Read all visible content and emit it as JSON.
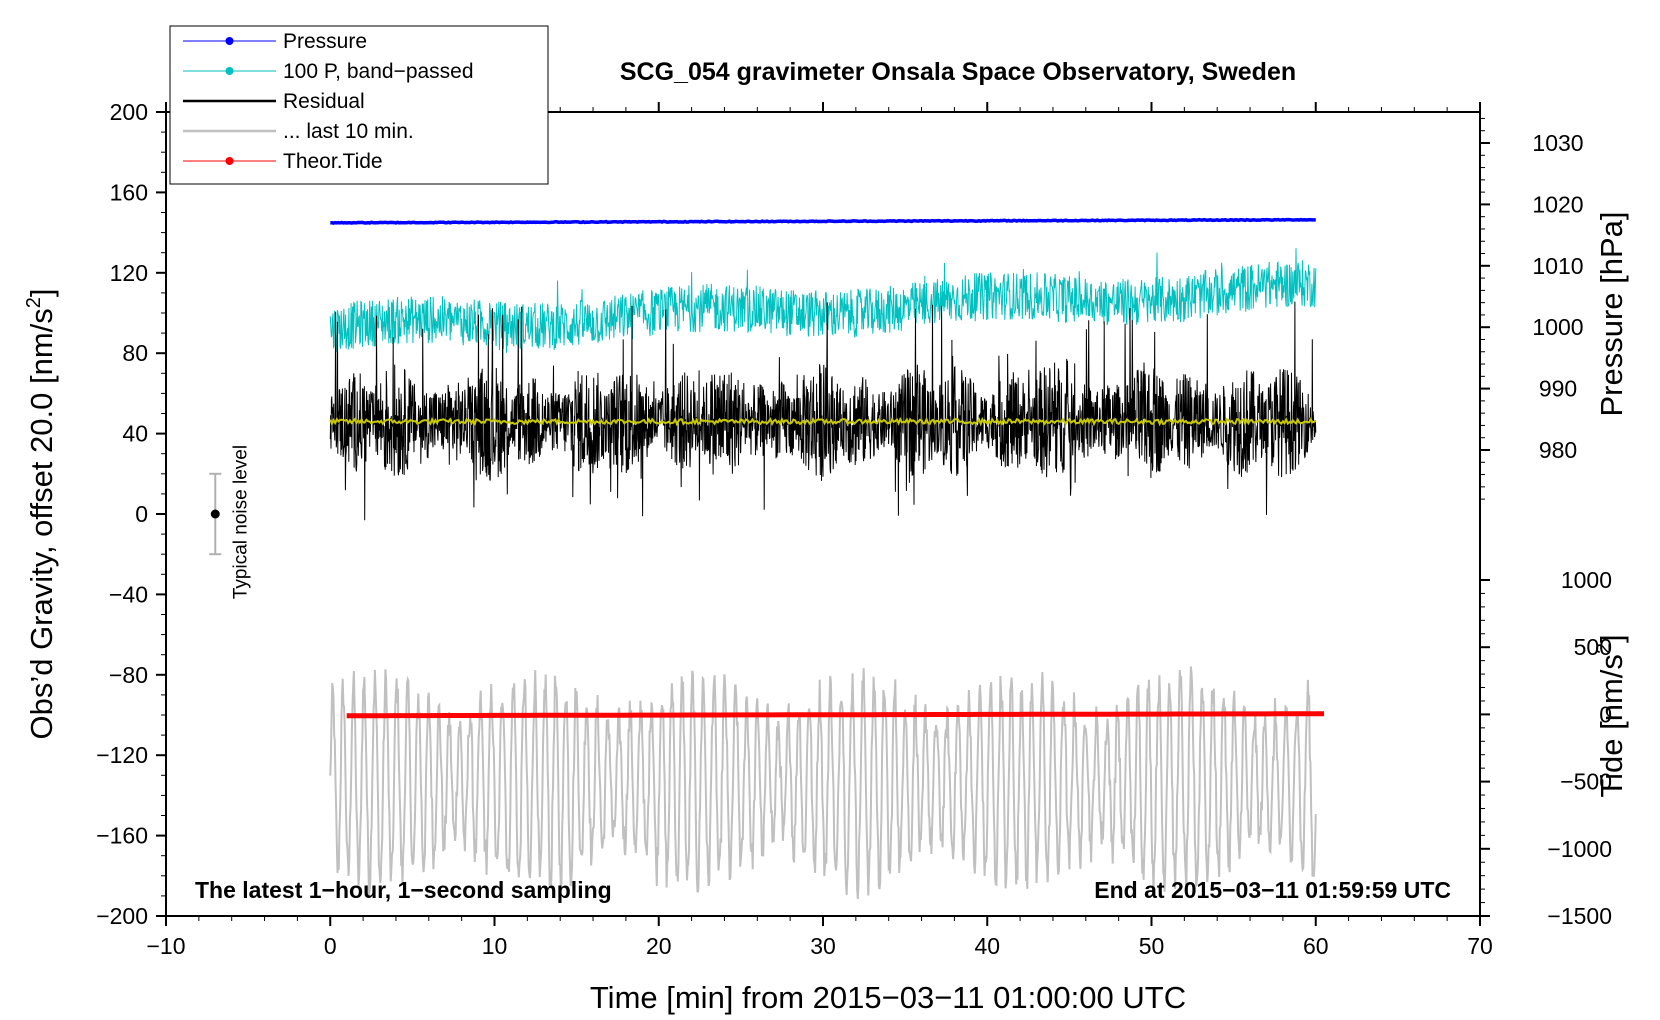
{
  "chart_data": {
    "type": "line",
    "title": "SCG_054 gravimeter Onsala Space Observatory, Sweden",
    "xlabel": "Time [min] from 2015−03−11 01:00:00 UTC",
    "ylabel_left": "Obs’d Gravity, offset 20.0 [nm/s²]",
    "ylabel_right_pressure": "Pressure [hPa]",
    "ylabel_right_tide": "Tide [nm/s²]",
    "xlim": [
      -10,
      70
    ],
    "ylim_left": [
      -200,
      200
    ],
    "ylim_pressure": [
      970,
      1035
    ],
    "ylim_tide": [
      -1500,
      1500
    ],
    "x_ticks": [
      "−10",
      "0",
      "10",
      "20",
      "30",
      "40",
      "50",
      "60",
      "70"
    ],
    "y_left_ticks": [
      "200",
      "160",
      "120",
      "80",
      "40",
      "0",
      "−40",
      "−80",
      "−120",
      "−160",
      "−200"
    ],
    "y_pressure_ticks": [
      "1030",
      "1020",
      "1010",
      "1000",
      "990",
      "980"
    ],
    "y_tide_ticks": [
      "1000",
      "500",
      "0",
      "−500",
      "−1000",
      "−1500"
    ],
    "legend": [
      {
        "label": "Pressure",
        "color": "#0000ff",
        "marker": true
      },
      {
        "label": "100 P, band−passed",
        "color": "#00c0c0",
        "marker": true
      },
      {
        "label": "Residual",
        "color": "#000000",
        "marker": false
      },
      {
        "label": "... last 10 min.",
        "color": "#c0c0c0",
        "marker": false
      },
      {
        "label": "Theor.Tide",
        "color": "#ff0000",
        "marker": true
      }
    ],
    "series": [
      {
        "name": "Pressure",
        "axis": "pressure",
        "x_range": [
          0,
          60
        ],
        "start": 1017.0,
        "end": 1017.5,
        "color": "#0000ff"
      },
      {
        "name": "100 P, band−passed",
        "axis": "left",
        "x_range": [
          0,
          60
        ],
        "baseline_start": 92,
        "baseline_end": 112,
        "amplitude": 12,
        "color": "#00c0c0"
      },
      {
        "name": "Residual",
        "axis": "left",
        "x_range": [
          0,
          60
        ],
        "center": 46,
        "min": -22,
        "max": 110,
        "color": "#000000"
      },
      {
        "name": "Residual smoothed",
        "axis": "left",
        "x_range": [
          0,
          60
        ],
        "value": 46,
        "color": "#c8c800"
      },
      {
        "name": "... last 10 min.",
        "axis": "left",
        "x_range": [
          0,
          60
        ],
        "center": -133,
        "amplitude": 50,
        "color": "#c0c0c0"
      },
      {
        "name": "Theor.Tide",
        "axis": "tide",
        "x_range": [
          1,
          60.5
        ],
        "start": -10,
        "end": 5,
        "color": "#ff0000"
      }
    ],
    "noise_level": {
      "label": "Typical noise level",
      "x": -7,
      "y": 0,
      "error": 20
    },
    "annotations": {
      "bottom_left": "The latest 1−hour, 1−second sampling",
      "bottom_right": "End at 2015−03−11 01:59:59 UTC"
    }
  }
}
